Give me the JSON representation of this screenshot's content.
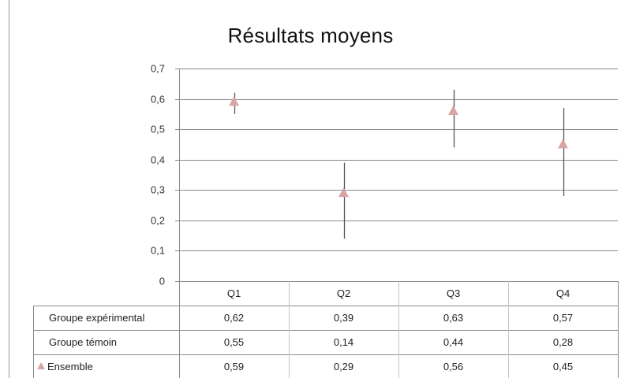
{
  "chart_data": {
    "type": "scatter",
    "title": "Résultats moyens",
    "categories": [
      "Q1",
      "Q2",
      "Q3",
      "Q4"
    ],
    "ylim": [
      0,
      0.7
    ],
    "yticks": [
      "0",
      "0,1",
      "0,2",
      "0,3",
      "0,4",
      "0,5",
      "0,6",
      "0,7"
    ],
    "grid": true,
    "series": [
      {
        "name": "Groupe expérimental",
        "values": [
          0.62,
          0.39,
          0.63,
          0.57
        ],
        "labels": [
          "0,62",
          "0,39",
          "0,63",
          "0,57"
        ]
      },
      {
        "name": "Groupe témoin",
        "values": [
          0.55,
          0.14,
          0.44,
          0.28
        ],
        "labels": [
          "0,55",
          "0,14",
          "0,44",
          "0,28"
        ]
      },
      {
        "name": "Ensemble",
        "values": [
          0.59,
          0.29,
          0.56,
          0.45
        ],
        "labels": [
          "0,59",
          "0,29",
          "0,56",
          "0,45"
        ],
        "marker": "triangle",
        "color": "#d9a4a6"
      }
    ],
    "error_line_color": "#555555"
  }
}
